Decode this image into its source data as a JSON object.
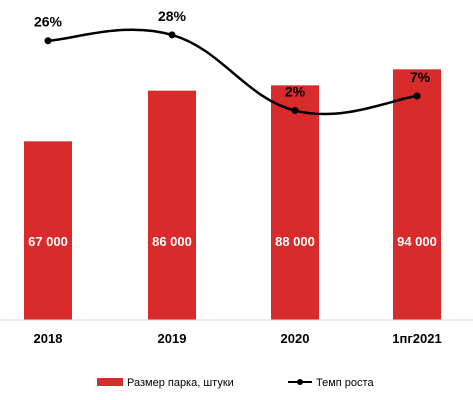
{
  "chart_data": {
    "type": "bar",
    "categories": [
      "2018",
      "2019",
      "2020",
      "1пг2021"
    ],
    "series": [
      {
        "name": "Размер парка, штуки",
        "type": "bar",
        "values": [
          67000,
          86000,
          88000,
          94000
        ],
        "value_labels": [
          "67 000",
          "86 000",
          "88 000",
          "94 000"
        ],
        "color": "#d92b2b"
      },
      {
        "name": "Темп роста",
        "type": "line",
        "values": [
          26,
          28,
          2,
          7
        ],
        "value_labels": [
          "26%",
          "28%",
          "2%",
          "7%"
        ],
        "color": "#000000"
      }
    ],
    "title": "",
    "xlabel": "",
    "ylabel": "",
    "ylim": [
      0,
      120000
    ],
    "y2lim": [
      -70,
      40
    ],
    "grid": false,
    "legend": "bottom"
  }
}
